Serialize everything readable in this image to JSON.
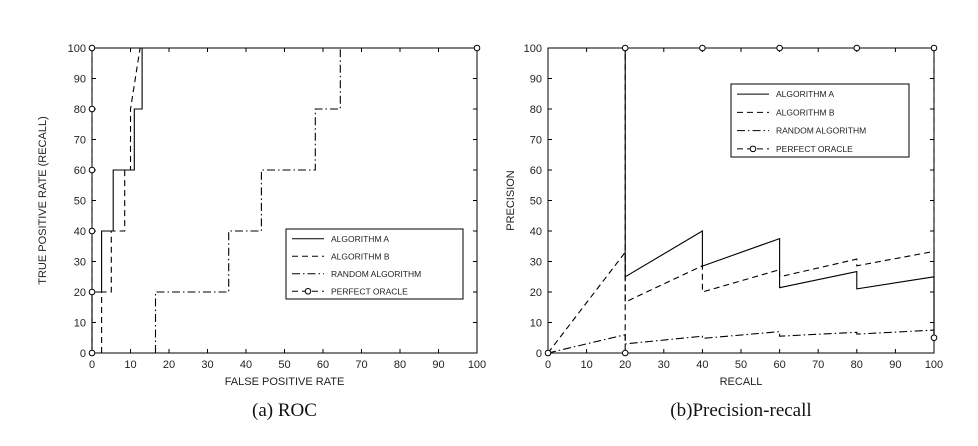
{
  "chart_data": [
    {
      "type": "line",
      "caption": "(a) ROC",
      "xlabel": "FALSE POSITIVE RATE",
      "ylabel": "TRUE POSITIVE RATE (RECALL)",
      "xlim": [
        0,
        100
      ],
      "ylim": [
        0,
        100
      ],
      "xticks": [
        0,
        10,
        20,
        30,
        40,
        50,
        60,
        70,
        80,
        90,
        100
      ],
      "yticks": [
        0,
        10,
        20,
        30,
        40,
        50,
        60,
        70,
        80,
        90,
        100
      ],
      "grid": false,
      "legend_position": "lower-right",
      "series": [
        {
          "name": "ALGORITHM A",
          "dash": "solid",
          "markers": false,
          "x": [
            0,
            0,
            2.5,
            2.5,
            5.5,
            5.5,
            11,
            11,
            13,
            13,
            16,
            16,
            100
          ],
          "y": [
            0,
            20,
            20,
            40,
            40,
            60,
            60,
            80,
            80,
            100,
            100,
            100,
            100
          ]
        },
        {
          "name": "ALGORITHM B",
          "dash": "dashed",
          "markers": false,
          "x": [
            2.5,
            2.5,
            5,
            5,
            8.5,
            8.5,
            10,
            10,
            12.5,
            100
          ],
          "y": [
            0,
            20,
            20,
            40,
            40,
            60,
            60,
            80,
            100,
            100
          ]
        },
        {
          "name": "RANDOM ALGORITHM",
          "dash": "dashdot",
          "markers": false,
          "x": [
            16.5,
            16.5,
            35.5,
            35.5,
            44,
            44,
            58,
            58,
            64.5,
            64.5
          ],
          "y": [
            0,
            20,
            20,
            40,
            40,
            60,
            60,
            80,
            80,
            100
          ]
        },
        {
          "name": "PERFECT ORACLE",
          "dash": "dashed",
          "markers": true,
          "x": [
            0,
            0,
            0,
            0,
            0,
            0,
            0,
            100
          ],
          "y": [
            0,
            20,
            40,
            60,
            80,
            100,
            100,
            100
          ]
        }
      ]
    },
    {
      "type": "line",
      "caption": "(b)Precision-recall",
      "xlabel": "RECALL",
      "ylabel": "PRECISION",
      "xlim": [
        0,
        100
      ],
      "ylim": [
        0,
        100
      ],
      "xticks": [
        0,
        10,
        20,
        30,
        40,
        50,
        60,
        70,
        80,
        90,
        100
      ],
      "yticks": [
        0,
        10,
        20,
        30,
        40,
        50,
        60,
        70,
        80,
        90,
        100
      ],
      "grid": false,
      "legend_position": "upper-right",
      "series": [
        {
          "name": "ALGORITHM A",
          "dash": "solid",
          "markers": false,
          "x": [
            20,
            20,
            20,
            40,
            40,
            60,
            60,
            80,
            80,
            100,
            100
          ],
          "y": [
            100,
            100,
            25,
            40,
            28.5,
            37.5,
            21.4,
            26.7,
            21,
            25,
            5
          ]
        },
        {
          "name": "ALGORITHM B",
          "dash": "dashed",
          "markers": false,
          "x": [
            0,
            20,
            20,
            40,
            40,
            60,
            60,
            80,
            80,
            100,
            100
          ],
          "y": [
            0,
            33,
            16.7,
            28.6,
            20,
            27.3,
            25,
            30.8,
            28.6,
            33.3,
            5
          ]
        },
        {
          "name": "RANDOM ALGORITHM",
          "dash": "dashdot",
          "markers": false,
          "x": [
            0,
            20,
            20,
            40,
            40,
            60,
            60,
            80,
            80,
            100,
            100
          ],
          "y": [
            0,
            6,
            3,
            5.5,
            4.8,
            7,
            5.5,
            6.8,
            6.2,
            7.5,
            4
          ]
        },
        {
          "name": "PERFECT ORACLE",
          "dash": "dashed",
          "markers": true,
          "x": [
            0,
            20,
            20,
            40,
            60,
            80,
            100,
            100
          ],
          "y": [
            0,
            0,
            100,
            100,
            100,
            100,
            100,
            5
          ]
        }
      ]
    }
  ]
}
